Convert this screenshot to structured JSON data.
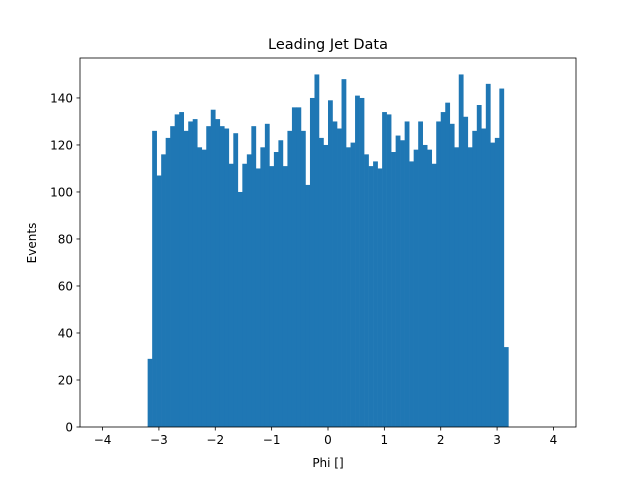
{
  "chart_data": {
    "type": "bar",
    "title": "Leading Jet Data",
    "xlabel": "Phi []",
    "ylabel": "Events",
    "xlim": [
      -4.4,
      4.4
    ],
    "ylim": [
      0,
      157
    ],
    "xticks": [
      -4,
      -3,
      -2,
      -1,
      0,
      1,
      2,
      3,
      4
    ],
    "xtick_labels": [
      "−4",
      "−3",
      "−2",
      "−1",
      "0",
      "1",
      "2",
      "3",
      "4"
    ],
    "yticks": [
      0,
      20,
      40,
      60,
      80,
      100,
      120,
      140
    ],
    "ytick_labels": [
      "0",
      "20",
      "40",
      "60",
      "80",
      "100",
      "120",
      "140"
    ],
    "bin_range": [
      -3.2,
      3.2
    ],
    "bar_color": "#1f77b4",
    "values": [
      29,
      126,
      107,
      116,
      123,
      128,
      133,
      134,
      126,
      130,
      131,
      119,
      118,
      128,
      135,
      131,
      128,
      127,
      112,
      125,
      100,
      112,
      116,
      128,
      110,
      119,
      129,
      111,
      117,
      122,
      111,
      126,
      136,
      136,
      126,
      103,
      140,
      150,
      123,
      120,
      139,
      130,
      127,
      148,
      119,
      121,
      141,
      140,
      116,
      111,
      113,
      110,
      134,
      133,
      117,
      124,
      122,
      130,
      113,
      118,
      130,
      120,
      118,
      112,
      130,
      134,
      138,
      129,
      119,
      150,
      132,
      119,
      126,
      137,
      127,
      146,
      121,
      123,
      144,
      34
    ],
    "grid": false
  }
}
